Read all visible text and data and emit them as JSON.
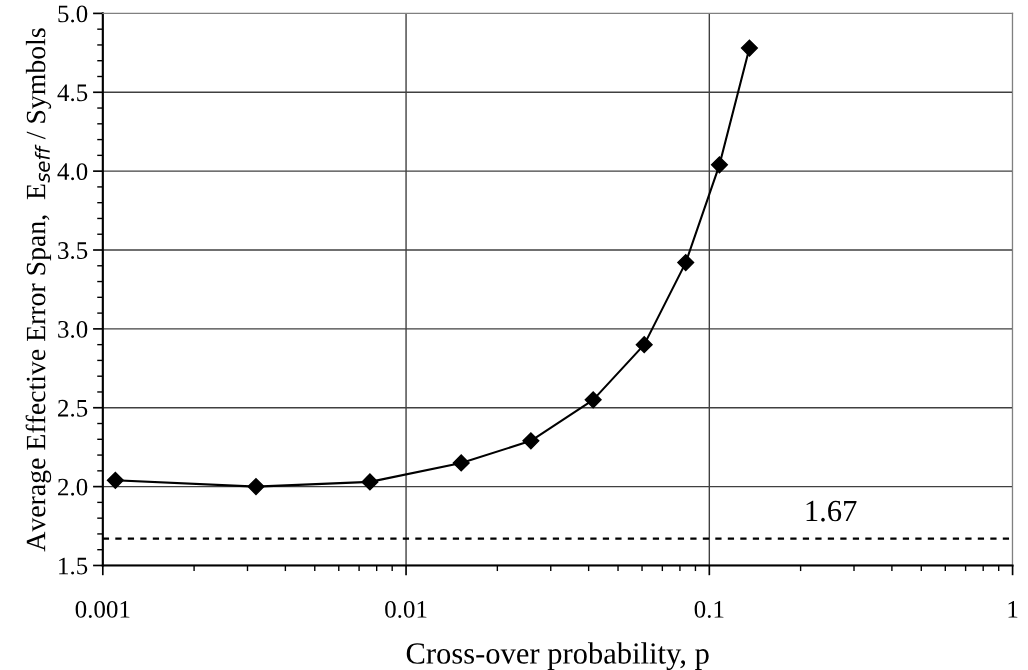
{
  "chart_data": {
    "type": "line",
    "xlabel": "Cross-over probability, p",
    "ylabel": "Average Effective Error Span,  E$_{seff}$ / Symbols",
    "x": [
      0.0011,
      0.0032,
      0.0076,
      0.0152,
      0.0258,
      0.0414,
      0.061,
      0.0836,
      0.108,
      0.1356
    ],
    "series": [
      {
        "color": "#000000",
        "values": [
          2.04,
          2.0,
          2.03,
          2.15,
          2.29,
          2.55,
          2.9,
          3.42,
          4.04,
          4.78
        ]
      }
    ],
    "marker": "diamond",
    "line_style": "solid",
    "log": "x",
    "xlim": [
      0.001,
      1
    ],
    "xticks": [
      0.001,
      0.01,
      0.1,
      1
    ],
    "ylim": [
      1.5,
      5.0
    ],
    "yticks": [
      {
        "value": 1.5,
        "label": "1.5"
      },
      {
        "value": 2.0,
        "label": "2.0"
      },
      {
        "value": 2.5,
        "label": "2.5"
      },
      {
        "value": 3.0,
        "label": "3.0"
      },
      {
        "value": 3.5,
        "label": "3.5"
      },
      {
        "value": 4.0,
        "label": "4.0"
      },
      {
        "value": 4.5,
        "label": "4.5"
      },
      {
        "value": 5.0,
        "label": "5.0"
      }
    ],
    "grid": true,
    "legend": false,
    "ref_lines": [
      {
        "axis": "y",
        "value": 1.67,
        "label": "1.67",
        "color": "#000000",
        "line_style": "dashed"
      }
    ]
  }
}
